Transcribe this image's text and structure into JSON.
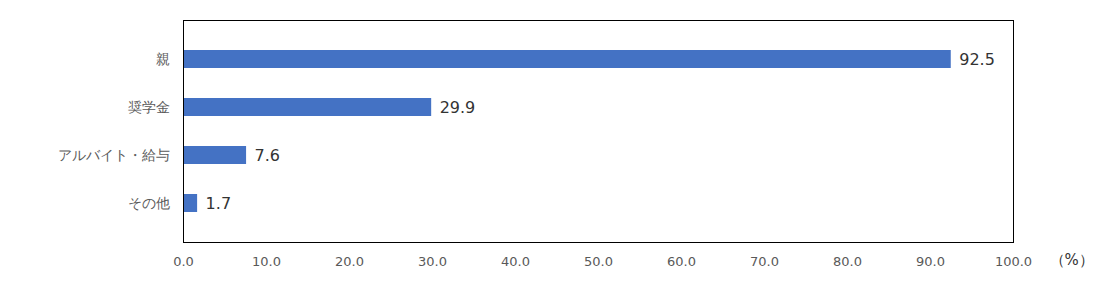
{
  "chart_data": {
    "type": "bar",
    "orientation": "horizontal",
    "categories": [
      "親",
      "奨学金",
      "アルバイト・給与",
      "その他"
    ],
    "values": [
      92.5,
      29.9,
      7.6,
      1.7
    ],
    "color": "#4472c4",
    "xlabel": "（%）",
    "xlim": [
      0,
      100
    ],
    "xticks": [
      {
        "value": 0,
        "label": "0.0"
      },
      {
        "value": 10,
        "label": "10.0"
      },
      {
        "value": 20,
        "label": "20.0"
      },
      {
        "value": 30,
        "label": "30.0"
      },
      {
        "value": 40,
        "label": "40.0"
      },
      {
        "value": 50,
        "label": "50.0"
      },
      {
        "value": 60,
        "label": "60.0"
      },
      {
        "value": 70,
        "label": "70.0"
      },
      {
        "value": 80,
        "label": "80.0"
      },
      {
        "value": 90,
        "label": "90.0"
      },
      {
        "value": 100,
        "label": "100.0"
      }
    ],
    "grid": false,
    "data_labels": true
  }
}
